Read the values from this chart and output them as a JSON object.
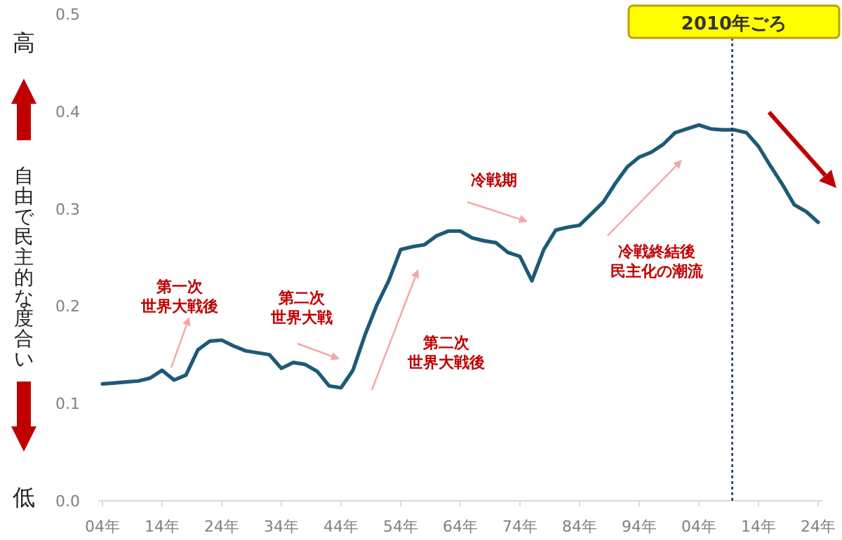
{
  "chart_data": {
    "type": "line",
    "ylabel": "自由で民主的な度合い",
    "annotations": [
      "高",
      "低",
      "第一次世界大戦後",
      "第二次世界大戦",
      "第二次世界大戦後",
      "冷戦期",
      "冷戦終結後民主化の潮流",
      "2010年ごろ"
    ],
    "categories": [
      "04年",
      null,
      null,
      null,
      null,
      "14年",
      null,
      null,
      null,
      null,
      "24年",
      null,
      null,
      null,
      null,
      "34年",
      null,
      null,
      null,
      null,
      "44年",
      null,
      null,
      null,
      null,
      "54年",
      null,
      null,
      null,
      null,
      "64年",
      null,
      null,
      null,
      null,
      "74年",
      null,
      null,
      null,
      null,
      "84年",
      null,
      null,
      null,
      null,
      "94年",
      null,
      null,
      null,
      null,
      "04年",
      null,
      null,
      null,
      null,
      "14年",
      null,
      null,
      null,
      null,
      "24年"
    ],
    "ylim": [
      0,
      0.5
    ],
    "yticks": [
      {
        "value": 0,
        "label": "0.0"
      },
      0.1,
      0.2,
      0.3,
      0.4,
      0.5
    ],
    "grid": false,
    "marker": "none",
    "line_style": "solid",
    "series": [
      {
        "color": "#1d5a78",
        "values": [
          0.12,
          0.121,
          0.122,
          0.123,
          0.126,
          0.134,
          0.124,
          0.129,
          0.155,
          0.164,
          0.165,
          0.159,
          0.154,
          0.152,
          0.15,
          0.136,
          0.142,
          0.14,
          0.133,
          0.118,
          0.116,
          0.134,
          0.17,
          0.201,
          0.226,
          0.258,
          0.261,
          0.263,
          0.272,
          0.277,
          0.277,
          0.27,
          0.267,
          0.265,
          0.255,
          0.251,
          0.226,
          0.258,
          0.278,
          0.281,
          0.283,
          0.295,
          0.307,
          0.326,
          0.343,
          0.353,
          0.358,
          0.366,
          0.378,
          0.382,
          0.386,
          0.382,
          0.381,
          0.381,
          0.378,
          0.364,
          0.344,
          0.325,
          0.304,
          0.297,
          0.286
        ]
      }
    ]
  }
}
